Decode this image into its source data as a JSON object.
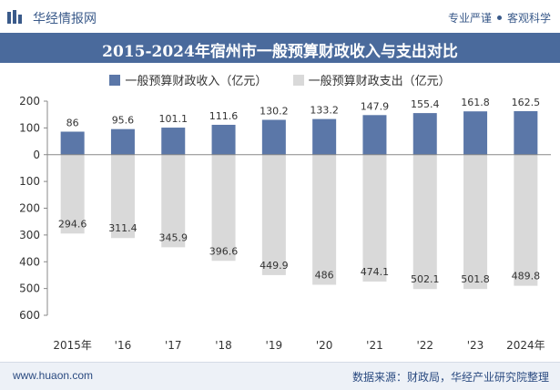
{
  "header": {
    "brand": "华经情报网",
    "tag1": "专业严谨",
    "tag2": "客观科学"
  },
  "footer": {
    "website": "www.huaon.com",
    "source": "数据来源：财政局，华经产业研究院整理"
  },
  "colors": {
    "revenue": "#5b77a8",
    "expenditure": "#d9d9d9",
    "title_bg": "#4a6a9c"
  },
  "chart_data": {
    "type": "bar",
    "title": "2015-2024年宿州市一般预算财政收入与支出对比",
    "categories": [
      "2015年",
      "'16",
      "'17",
      "'18",
      "'19",
      "'20",
      "'21",
      "'22",
      "'23",
      "2024年"
    ],
    "series": [
      {
        "name": "一般预算财政收入（亿元）",
        "values": [
          86,
          95.6,
          101.1,
          111.6,
          130.2,
          133.2,
          147.9,
          155.4,
          161.8,
          162.5
        ]
      },
      {
        "name": "一般预算财政支出（亿元）",
        "values": [
          -294.6,
          -311.4,
          -345.9,
          -396.6,
          -449.9,
          -486,
          -474.1,
          -502.1,
          -501.8,
          -489.8
        ]
      }
    ],
    "value_labels": [
      [
        "86",
        "95.6",
        "101.1",
        "111.6",
        "130.2",
        "133.2",
        "147.9",
        "155.4",
        "161.8",
        "162.5"
      ],
      [
        "294.6",
        "311.4",
        "345.9",
        "396.6",
        "449.9",
        "486",
        "474.1",
        "502.1",
        "501.8",
        "489.8"
      ]
    ],
    "ylim": [
      -600,
      200
    ],
    "yticks": [
      200,
      100,
      0,
      -100,
      -200,
      -300,
      -400,
      -500,
      -600
    ],
    "ytick_labels": [
      "200",
      "100",
      "0",
      "100",
      "200",
      "300",
      "400",
      "500",
      "600"
    ],
    "legend_position": "top-center",
    "grid": false
  }
}
